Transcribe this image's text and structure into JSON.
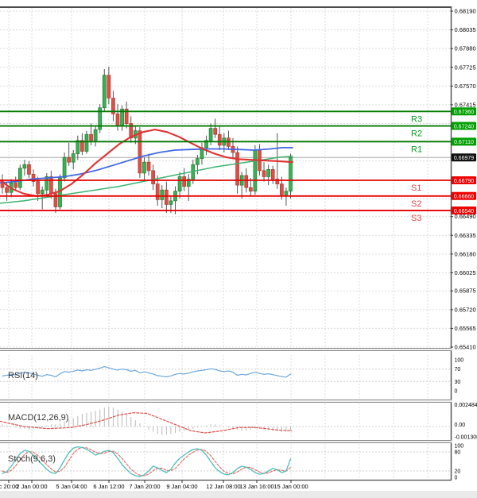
{
  "panels": {
    "rsi": {
      "label": "RSI(14)",
      "ticks": [
        "100",
        "70",
        "30",
        "0"
      ]
    },
    "macd": {
      "label": "MACD(12,26,9)",
      "ticks": [
        "0.002484",
        "0.00",
        "-0.001306"
      ]
    },
    "stoch": {
      "label": "Stoch(9,6,3)",
      "ticks": [
        "100",
        "80",
        "20",
        "0"
      ]
    }
  },
  "colors": {
    "up": "#3CB054",
    "up_border": "#1E7A32",
    "down": "#DD5045",
    "down_border": "#AF3A33",
    "wick": "#555555",
    "ma_fast": "#E03232",
    "ma_mid": "#4169E1",
    "ma_slow": "#3CB371",
    "res_line": "#007A00",
    "res_box": "#00A000",
    "res_text": "#00A020",
    "sup_line": "#E80000",
    "sup_box": "#EE0000",
    "sup_text": "#EE4444",
    "cur_box": "#111111",
    "cur_line": "#ABABAB",
    "grid": "#DCDCDC",
    "rsi_line": "#6FA8DC",
    "macd_hist": "#BBBBBB",
    "macd_signal": "#E05050",
    "stoch_k": "#4DBFB8",
    "stoch_d": "#E87070",
    "frame": "#4D4D4D",
    "sep_edge": "#8A8A8A",
    "sep_fill": "#EFEFEF",
    "strip": "#EAEAEA",
    "tick_text": "#000000"
  },
  "chart_data": {
    "type": "candlestick",
    "title": "",
    "timeframe_note": "4h forex candles with RSI, MACD and Stochastic sub-panels",
    "price_axis": {
      "range": [
        0.6541,
        0.6819
      ],
      "ticks": [
        {
          "label": "0.68190",
          "value": 0.6819
        },
        {
          "label": "0.68035",
          "value": 0.68035
        },
        {
          "label": "0.67880",
          "value": 0.6788
        },
        {
          "label": "0.67725",
          "value": 0.67725
        },
        {
          "label": "0.67570",
          "value": 0.6757
        },
        {
          "label": "0.67415",
          "value": 0.67415
        },
        {
          "label": "0.66490",
          "value": 0.6649
        },
        {
          "label": "0.66335",
          "value": 0.66335
        },
        {
          "label": "0.66180",
          "value": 0.6618
        },
        {
          "label": "0.66025",
          "value": 0.66025
        },
        {
          "label": "0.65875",
          "value": 0.65875
        },
        {
          "label": "0.65720",
          "value": 0.6572
        },
        {
          "label": "0.65565",
          "value": 0.65565
        },
        {
          "label": "0.65410",
          "value": 0.6541
        }
      ],
      "grid_only": [
        0.6726,
        0.67105,
        0.6695,
        0.66795,
        0.6664
      ]
    },
    "date_axis": {
      "labels": [
        "c 20:00",
        "2 Jan 00:00",
        "5 Jan 04:00",
        "6 Jan 12:00",
        "7 Jan 20:00",
        "9 Jan 04:00",
        "12 Jan 08:00",
        "13 Jan 16:00",
        "15 Jan 00:00"
      ],
      "x": [
        11,
        40,
        90,
        137,
        182,
        229,
        281,
        323,
        366
      ],
      "grid_extra": [
        409,
        452,
        495,
        538
      ]
    },
    "levels": {
      "resistance": [
        {
          "name": "R3",
          "label": "0.67360",
          "value": 0.6736
        },
        {
          "name": "R2",
          "label": "0.67240",
          "value": 0.6724
        },
        {
          "name": "R1",
          "label": "0.67110",
          "value": 0.6711
        }
      ],
      "support": [
        {
          "name": "S1",
          "label": "0.66790",
          "value": 0.6679
        },
        {
          "name": "S2",
          "label": "0.66660",
          "value": 0.6666
        },
        {
          "name": "S3",
          "label": "0.66540",
          "value": 0.6654
        }
      ],
      "current_price": {
        "label": "0.66979",
        "value": 0.66979
      }
    },
    "candles": [
      [
        0.6678,
        0.6684,
        0.6668,
        0.6673
      ],
      [
        0.6673,
        0.6677,
        0.6662,
        0.6669
      ],
      [
        0.6669,
        0.668,
        0.6665,
        0.6677
      ],
      [
        0.6677,
        0.6682,
        0.667,
        0.6673
      ],
      [
        0.6673,
        0.6692,
        0.6671,
        0.6689
      ],
      [
        0.6689,
        0.6696,
        0.6683,
        0.6692
      ],
      [
        0.6692,
        0.6695,
        0.6681,
        0.6684
      ],
      [
        0.6684,
        0.6688,
        0.6674,
        0.6678
      ],
      [
        0.6678,
        0.6682,
        0.6662,
        0.6668
      ],
      [
        0.6668,
        0.6674,
        0.6655,
        0.6671
      ],
      [
        0.6671,
        0.6685,
        0.6666,
        0.6682
      ],
      [
        0.6682,
        0.6687,
        0.6664,
        0.6668
      ],
      [
        0.6668,
        0.6672,
        0.6652,
        0.6657
      ],
      [
        0.6657,
        0.6684,
        0.6655,
        0.6681
      ],
      [
        0.6681,
        0.6702,
        0.6678,
        0.6698
      ],
      [
        0.6698,
        0.671,
        0.6691,
        0.6694
      ],
      [
        0.6694,
        0.6704,
        0.6688,
        0.6701
      ],
      [
        0.6701,
        0.6716,
        0.6696,
        0.6712
      ],
      [
        0.6712,
        0.6718,
        0.67,
        0.6703
      ],
      [
        0.6703,
        0.672,
        0.6701,
        0.6717
      ],
      [
        0.6717,
        0.6726,
        0.6708,
        0.6712
      ],
      [
        0.6712,
        0.6724,
        0.6707,
        0.6721
      ],
      [
        0.6721,
        0.6742,
        0.6718,
        0.6739
      ],
      [
        0.6739,
        0.6771,
        0.6736,
        0.6766
      ],
      [
        0.6766,
        0.6773,
        0.6742,
        0.6747
      ],
      [
        0.6747,
        0.6753,
        0.6728,
        0.6734
      ],
      [
        0.6734,
        0.6742,
        0.672,
        0.6724
      ],
      [
        0.6724,
        0.6741,
        0.672,
        0.6738
      ],
      [
        0.6738,
        0.6744,
        0.6722,
        0.6726
      ],
      [
        0.6726,
        0.6732,
        0.671,
        0.6714
      ],
      [
        0.6714,
        0.6724,
        0.6709,
        0.672
      ],
      [
        0.672,
        0.6723,
        0.6681,
        0.6685
      ],
      [
        0.6685,
        0.6698,
        0.6679,
        0.6694
      ],
      [
        0.6694,
        0.6701,
        0.6683,
        0.6687
      ],
      [
        0.6687,
        0.6692,
        0.6671,
        0.6676
      ],
      [
        0.6676,
        0.6683,
        0.6658,
        0.6663
      ],
      [
        0.6663,
        0.6675,
        0.6656,
        0.6671
      ],
      [
        0.6671,
        0.6678,
        0.6652,
        0.6659
      ],
      [
        0.6659,
        0.6666,
        0.6652,
        0.6662
      ],
      [
        0.6662,
        0.6674,
        0.6651,
        0.667
      ],
      [
        0.667,
        0.6686,
        0.6664,
        0.6682
      ],
      [
        0.6682,
        0.6689,
        0.667,
        0.6674
      ],
      [
        0.6674,
        0.6684,
        0.6662,
        0.668
      ],
      [
        0.668,
        0.6696,
        0.6676,
        0.6692
      ],
      [
        0.6692,
        0.67,
        0.6684,
        0.6697
      ],
      [
        0.6697,
        0.671,
        0.6692,
        0.6706
      ],
      [
        0.6706,
        0.6716,
        0.67,
        0.6712
      ],
      [
        0.6712,
        0.6726,
        0.6708,
        0.6722
      ],
      [
        0.6722,
        0.673,
        0.6714,
        0.6717
      ],
      [
        0.6717,
        0.6724,
        0.6704,
        0.6708
      ],
      [
        0.6708,
        0.6718,
        0.6702,
        0.6714
      ],
      [
        0.6714,
        0.672,
        0.6704,
        0.6707
      ],
      [
        0.6707,
        0.6714,
        0.6697,
        0.6702
      ],
      [
        0.6702,
        0.6707,
        0.6668,
        0.6675
      ],
      [
        0.6675,
        0.6686,
        0.6664,
        0.6683
      ],
      [
        0.6683,
        0.6689,
        0.6669,
        0.6673
      ],
      [
        0.6673,
        0.6681,
        0.6666,
        0.667
      ],
      [
        0.667,
        0.6708,
        0.6667,
        0.6704
      ],
      [
        0.6704,
        0.6709,
        0.6683,
        0.6687
      ],
      [
        0.6687,
        0.6694,
        0.6678,
        0.6682
      ],
      [
        0.6682,
        0.6692,
        0.6675,
        0.6688
      ],
      [
        0.6688,
        0.6691,
        0.6676,
        0.668
      ],
      [
        0.668,
        0.6718,
        0.6672,
        0.6676
      ],
      [
        0.6676,
        0.6682,
        0.6663,
        0.6667
      ],
      [
        0.6667,
        0.6673,
        0.6658,
        0.667
      ],
      [
        0.667,
        0.6701,
        0.6664,
        0.66979
      ]
    ],
    "overlays": {
      "ma_fast_red": [
        [
          0,
          0.6679
        ],
        [
          15,
          0.6672
        ],
        [
          30,
          0.6668
        ],
        [
          45,
          0.6666
        ],
        [
          60,
          0.6667
        ],
        [
          75,
          0.667
        ],
        [
          90,
          0.6676
        ],
        [
          105,
          0.6684
        ],
        [
          120,
          0.6693
        ],
        [
          135,
          0.6701
        ],
        [
          150,
          0.6709
        ],
        [
          165,
          0.6715
        ],
        [
          180,
          0.6719
        ],
        [
          195,
          0.6721
        ],
        [
          210,
          0.6719
        ],
        [
          225,
          0.6715
        ],
        [
          240,
          0.671
        ],
        [
          255,
          0.6705
        ],
        [
          270,
          0.6701
        ],
        [
          285,
          0.6698
        ],
        [
          300,
          0.66965
        ],
        [
          315,
          0.6696
        ],
        [
          330,
          0.66955
        ],
        [
          345,
          0.6695
        ],
        [
          358,
          0.66945
        ],
        [
          368,
          0.6694
        ]
      ],
      "ma_mid_blue": [
        [
          0,
          0.6677
        ],
        [
          20,
          0.6678
        ],
        [
          40,
          0.668
        ],
        [
          60,
          0.6681
        ],
        [
          80,
          0.6682
        ],
        [
          100,
          0.6684
        ],
        [
          120,
          0.6687
        ],
        [
          140,
          0.6691
        ],
        [
          160,
          0.6695
        ],
        [
          180,
          0.6699
        ],
        [
          200,
          0.6702
        ],
        [
          220,
          0.6704
        ],
        [
          240,
          0.67045
        ],
        [
          260,
          0.6705
        ],
        [
          280,
          0.6705
        ],
        [
          300,
          0.67045
        ],
        [
          320,
          0.6704
        ],
        [
          340,
          0.6705
        ],
        [
          355,
          0.6706
        ],
        [
          368,
          0.6706
        ]
      ],
      "ma_slow_green": [
        [
          0,
          0.666
        ],
        [
          30,
          0.6662
        ],
        [
          60,
          0.6665
        ],
        [
          90,
          0.6668
        ],
        [
          120,
          0.6671
        ],
        [
          150,
          0.6674
        ],
        [
          180,
          0.6678
        ],
        [
          210,
          0.6682
        ],
        [
          240,
          0.6686
        ],
        [
          270,
          0.669
        ],
        [
          300,
          0.6693
        ],
        [
          330,
          0.6696
        ],
        [
          350,
          0.6698
        ],
        [
          368,
          0.6699
        ]
      ]
    },
    "rsi": {
      "range": [
        0,
        100
      ],
      "levels": [
        70,
        30
      ],
      "values": [
        48,
        50,
        53,
        51,
        57,
        60,
        58,
        54,
        50,
        47,
        52,
        50,
        45,
        55,
        62,
        60,
        63,
        67,
        64,
        68,
        66,
        69,
        73,
        78,
        74,
        70,
        67,
        70,
        68,
        63,
        66,
        58,
        61,
        58,
        54,
        49,
        47,
        45,
        48,
        53,
        56,
        54,
        57,
        61,
        64,
        66,
        68,
        71,
        69,
        64,
        62,
        64,
        60,
        50,
        53,
        51,
        56,
        60,
        56,
        53,
        55,
        52,
        49,
        46,
        44,
        54
      ]
    },
    "macd": {
      "range": [
        -0.001306,
        0.002484
      ],
      "levels": [
        0
      ],
      "histogram": [
        0.0002,
        0.0001,
        0.0,
        -0.0001,
        -0.0002,
        -0.0002,
        -0.0003,
        -0.0002,
        -0.0002,
        -0.0001,
        0.0001,
        0.0002,
        0.0002,
        0.0003,
        0.0005,
        0.0007,
        0.0008,
        0.001,
        0.0012,
        0.0013,
        0.0014,
        0.0015,
        0.0016,
        0.0018,
        0.0019,
        0.0018,
        0.0016,
        0.0014,
        0.0012,
        0.0009,
        0.0006,
        0.0003,
        0.0,
        -0.0003,
        -0.0005,
        -0.0007,
        -0.0008,
        -0.0008,
        -0.0007,
        -0.0006,
        -0.0005,
        -0.0004,
        -0.0003,
        -0.0002,
        -0.0001,
        0.0,
        0.0001,
        0.0002,
        0.0002,
        0.0001,
        0.0,
        -0.0001,
        -0.0002,
        -0.0003,
        -0.0004,
        -0.0004,
        -0.0003,
        -0.0002,
        -0.0002,
        -0.0003,
        -0.0003,
        -0.0004,
        -0.0004,
        -0.0005,
        -0.0005,
        -0.0004
      ],
      "signal": [
        [
          0,
          0.0005
        ],
        [
          30,
          0.0
        ],
        [
          60,
          -0.0002
        ],
        [
          90,
          -0.0001
        ],
        [
          110,
          0.0002
        ],
        [
          130,
          0.0006
        ],
        [
          150,
          0.0011
        ],
        [
          168,
          0.0013
        ],
        [
          185,
          0.00125
        ],
        [
          200,
          0.0008
        ],
        [
          220,
          0.0002
        ],
        [
          240,
          -0.0004
        ],
        [
          258,
          -0.0006
        ],
        [
          280,
          -0.0004
        ],
        [
          300,
          -0.0001
        ],
        [
          318,
          -8e-05
        ],
        [
          335,
          -0.0002
        ],
        [
          350,
          -0.00035
        ],
        [
          367,
          -0.0004
        ]
      ]
    },
    "stoch": {
      "range": [
        0,
        100
      ],
      "levels": [
        80,
        20
      ],
      "k": [
        12,
        18,
        35,
        55,
        75,
        85,
        82,
        70,
        55,
        40,
        25,
        15,
        12,
        30,
        55,
        78,
        92,
        96,
        94,
        88,
        80,
        70,
        75,
        82,
        85,
        78,
        60,
        40,
        25,
        12,
        5,
        3,
        8,
        20,
        35,
        30,
        22,
        15,
        25,
        45,
        60,
        70,
        80,
        88,
        90,
        85,
        70,
        50,
        30,
        18,
        10,
        8,
        15,
        28,
        35,
        32,
        25,
        15,
        10,
        12,
        20,
        28,
        24,
        15,
        20,
        58
      ],
      "d": [
        20,
        15,
        22,
        36,
        55,
        72,
        81,
        79,
        69,
        55,
        40,
        27,
        17,
        19,
        32,
        54,
        75,
        89,
        94,
        93,
        87,
        79,
        75,
        76,
        81,
        82,
        74,
        59,
        42,
        26,
        14,
        7,
        5,
        10,
        21,
        28,
        29,
        22,
        21,
        28,
        43,
        58,
        70,
        79,
        86,
        88,
        82,
        68,
        50,
        33,
        19,
        12,
        11,
        17,
        26,
        32,
        31,
        24,
        17,
        12,
        14,
        20,
        24,
        22,
        20,
        31
      ]
    }
  }
}
